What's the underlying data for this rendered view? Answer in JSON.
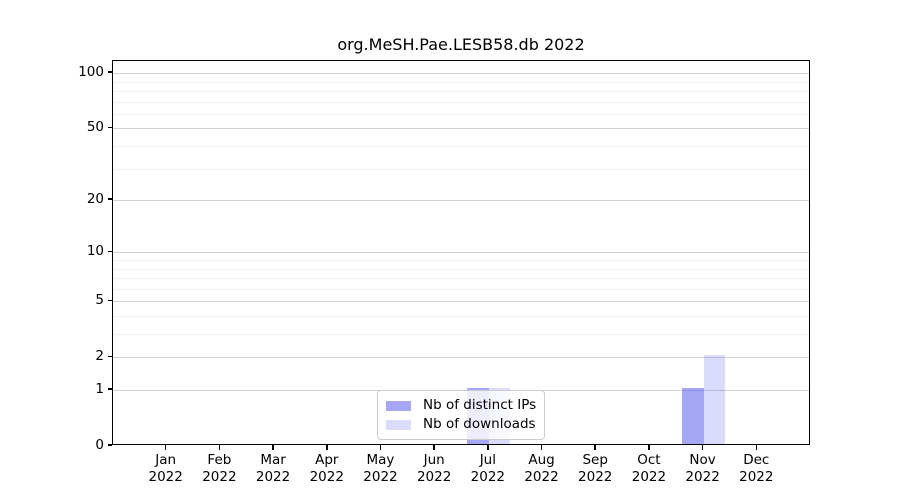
{
  "chart_data": {
    "type": "bar",
    "title": "org.MeSH.Pae.LESB58.db 2022",
    "categories": [
      {
        "month": "Jan",
        "year": "2022"
      },
      {
        "month": "Feb",
        "year": "2022"
      },
      {
        "month": "Mar",
        "year": "2022"
      },
      {
        "month": "Apr",
        "year": "2022"
      },
      {
        "month": "May",
        "year": "2022"
      },
      {
        "month": "Jun",
        "year": "2022"
      },
      {
        "month": "Jul",
        "year": "2022"
      },
      {
        "month": "Aug",
        "year": "2022"
      },
      {
        "month": "Sep",
        "year": "2022"
      },
      {
        "month": "Oct",
        "year": "2022"
      },
      {
        "month": "Nov",
        "year": "2022"
      },
      {
        "month": "Dec",
        "year": "2022"
      }
    ],
    "series": [
      {
        "name": "Nb of distinct IPs",
        "color": "rgba(77,77,240,0.5)",
        "color_on_white_hex": "#a6a6f7",
        "values": [
          0,
          0,
          0,
          0,
          0,
          0,
          1,
          0,
          0,
          0,
          1,
          0
        ]
      },
      {
        "name": "Nb of downloads",
        "color": "rgba(77,77,240,0.2)",
        "color_on_white_hex": "#dbdbf7",
        "values": [
          0,
          0,
          0,
          0,
          0,
          0,
          1,
          0,
          0,
          0,
          2,
          0
        ]
      }
    ],
    "y_axis": {
      "scale": "log10(value+1)",
      "ticks_major": [
        0,
        1,
        2,
        5,
        10,
        20,
        50,
        100
      ],
      "ticks_minor": [
        3,
        4,
        6,
        7,
        8,
        9,
        30,
        40,
        60,
        70,
        80,
        90
      ],
      "range": [
        0,
        115
      ]
    },
    "x_axis": {
      "label": ""
    },
    "legend_position": "bottom-center",
    "grid": "horizontal",
    "colors": {
      "background": "#ffffff",
      "text": "#000000",
      "spine": "#000000",
      "grid_major": "#d2d2d2",
      "grid_minor": "#f0f0f0"
    }
  }
}
